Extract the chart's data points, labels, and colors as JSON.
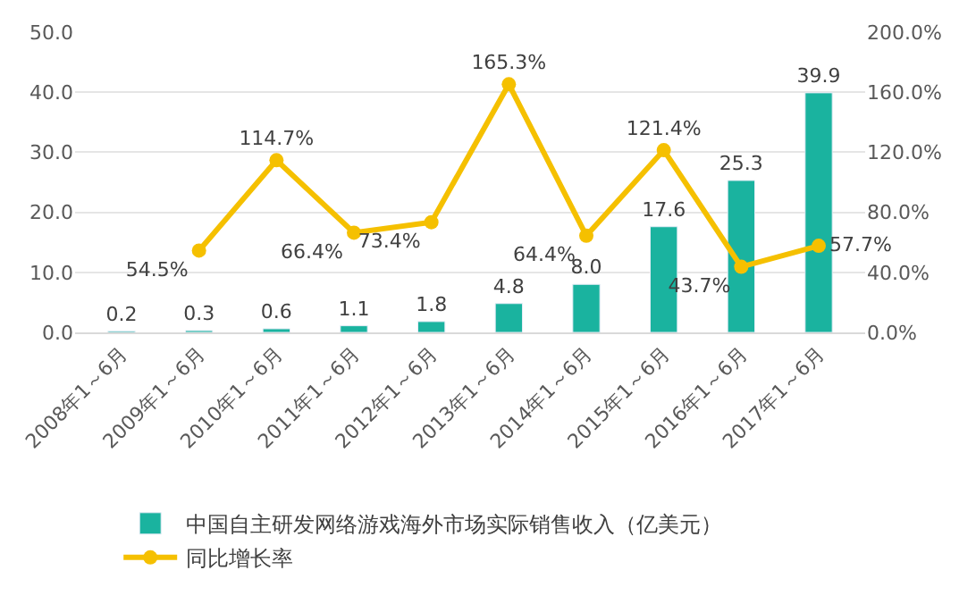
{
  "chart_data": {
    "type": "bar",
    "categories": [
      "2008年1～6月",
      "2009年1～6月",
      "2010年1～6月",
      "2011年1～6月",
      "2012年1～6月",
      "2013年1～6月",
      "2014年1～6月",
      "2015年1～6月",
      "2016年1～6月",
      "2017年1～6月"
    ],
    "series": [
      {
        "name": "中国自主研发网络游戏海外市场实际销售收入（亿美元）",
        "color": "#1ab39f",
        "values": [
          0.2,
          0.3,
          0.6,
          1.1,
          1.8,
          4.8,
          8.0,
          17.6,
          25.3,
          39.9
        ],
        "value_labels": [
          "0.2",
          "0.3",
          "0.6",
          "1.1",
          "1.8",
          "4.8",
          "8.0",
          "17.6",
          "25.3",
          "39.9"
        ]
      },
      {
        "name": "同比增长率",
        "color": "#f5c000",
        "type": "line",
        "axis": "y2",
        "marker": "circle",
        "values": [
          null,
          54.5,
          114.7,
          66.4,
          73.4,
          165.3,
          64.4,
          121.4,
          43.7,
          57.7
        ],
        "value_labels": [
          null,
          "54.5%",
          "114.7%",
          "66.4%",
          "73.4%",
          "165.3%",
          "64.4%",
          "121.4%",
          "43.7%",
          "57.7%"
        ]
      }
    ],
    "ylim": [
      0,
      50
    ],
    "yticks": [
      {
        "value": 0,
        "label": "0.0"
      },
      {
        "value": 10,
        "label": "10.0"
      },
      {
        "value": 20,
        "label": "20.0"
      },
      {
        "value": 30,
        "label": "30.0"
      },
      {
        "value": 40,
        "label": "40.0"
      },
      {
        "value": 50,
        "label": "50.0"
      }
    ],
    "y2lim": [
      0,
      200
    ],
    "y2ticks": [
      {
        "value": 0,
        "label": "0.0%"
      },
      {
        "value": 40,
        "label": "40.0%"
      },
      {
        "value": 80,
        "label": "80.0%"
      },
      {
        "value": 120,
        "label": "120.0%"
      },
      {
        "value": 160,
        "label": "160.0%"
      },
      {
        "value": 200,
        "label": "200.0%"
      }
    ],
    "grid": "y",
    "legend": "bottom"
  }
}
